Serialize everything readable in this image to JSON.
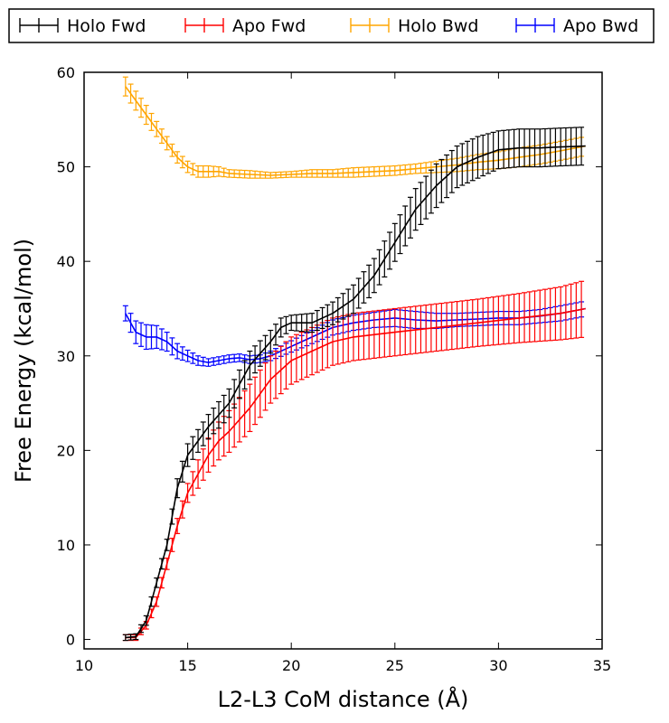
{
  "chart_data": {
    "type": "line",
    "title": "",
    "xlabel": "L2-L3 CoM distance (Å)",
    "ylabel": "Free Energy (kcal/mol)",
    "xlim": [
      10,
      35
    ],
    "ylim": [
      -1,
      60
    ],
    "xticks": [
      10,
      15,
      20,
      25,
      30,
      35
    ],
    "yticks": [
      0,
      10,
      20,
      30,
      40,
      50,
      60
    ],
    "grid": false,
    "legend_position": "top, outside plot, single row",
    "series": [
      {
        "name": "Holo Fwd",
        "color": "#000000",
        "x": [
          12.0,
          12.5,
          13.0,
          13.5,
          14.0,
          14.5,
          15.0,
          15.5,
          16.0,
          17.0,
          18.0,
          19.0,
          19.5,
          20.0,
          21.0,
          22.0,
          23.0,
          24.0,
          25.0,
          26.0,
          27.0,
          28.0,
          29.0,
          30.0,
          31.0,
          32.0,
          33.0,
          34.2
        ],
        "y": [
          0.2,
          0.3,
          2.0,
          6.0,
          10.0,
          16.0,
          19.5,
          21.0,
          22.5,
          25.0,
          29.0,
          31.5,
          33.0,
          33.5,
          33.5,
          34.5,
          36.0,
          38.5,
          42.0,
          45.5,
          48.0,
          50.0,
          51.0,
          51.8,
          52.0,
          52.0,
          52.1,
          52.2
        ],
        "err": [
          0.3,
          0.3,
          0.5,
          0.5,
          0.6,
          1.0,
          1.2,
          1.2,
          1.3,
          1.5,
          1.5,
          1.2,
          1.0,
          0.8,
          1.0,
          1.2,
          1.5,
          1.8,
          2.0,
          2.2,
          2.3,
          2.2,
          2.2,
          2.0,
          2.0,
          2.0,
          2.0,
          2.0
        ]
      },
      {
        "name": "Apo Fwd",
        "color": "#ff0000",
        "x": [
          12.0,
          12.5,
          13.0,
          13.5,
          14.0,
          14.5,
          15.0,
          15.5,
          16.0,
          16.5,
          17.0,
          18.0,
          19.0,
          20.0,
          21.0,
          22.0,
          23.0,
          25.0,
          27.0,
          29.0,
          31.0,
          33.0,
          34.2
        ],
        "y": [
          0.2,
          0.2,
          1.5,
          4.0,
          8.0,
          12.0,
          15.5,
          17.5,
          19.5,
          21.0,
          22.0,
          24.5,
          27.5,
          29.5,
          30.5,
          31.5,
          32.0,
          32.5,
          33.0,
          33.5,
          34.0,
          34.5,
          35.0
        ],
        "err": [
          0.3,
          0.3,
          0.4,
          0.5,
          0.6,
          0.8,
          1.0,
          1.5,
          1.8,
          2.0,
          2.2,
          2.5,
          2.5,
          2.5,
          2.5,
          2.5,
          2.5,
          2.5,
          2.5,
          2.5,
          2.6,
          2.8,
          3.0
        ]
      },
      {
        "name": "Holo Bwd",
        "color": "#ffa500",
        "x": [
          12.0,
          12.5,
          13.0,
          13.5,
          14.0,
          14.5,
          15.0,
          15.5,
          16.0,
          16.5,
          17.0,
          18.0,
          19.0,
          20.0,
          21.0,
          22.0,
          23.0,
          24.0,
          25.0,
          26.0,
          27.0,
          28.0,
          29.0,
          30.0,
          31.0,
          32.0,
          33.0,
          34.2
        ],
        "y": [
          58.5,
          57.0,
          55.5,
          54.0,
          52.5,
          51.0,
          50.0,
          49.5,
          49.5,
          49.5,
          49.3,
          49.2,
          49.1,
          49.2,
          49.3,
          49.3,
          49.4,
          49.5,
          49.6,
          49.8,
          50.0,
          50.2,
          50.5,
          50.7,
          51.0,
          51.3,
          51.7,
          52.2
        ],
        "err": [
          1.0,
          1.0,
          1.0,
          0.8,
          0.7,
          0.6,
          0.6,
          0.6,
          0.6,
          0.5,
          0.4,
          0.4,
          0.3,
          0.3,
          0.4,
          0.4,
          0.5,
          0.5,
          0.5,
          0.5,
          0.6,
          0.7,
          0.8,
          0.9,
          1.0,
          1.0,
          1.0,
          1.0
        ]
      },
      {
        "name": "Apo Bwd",
        "color": "#0000ff",
        "x": [
          12.0,
          12.5,
          13.0,
          13.5,
          14.0,
          14.5,
          15.0,
          15.5,
          16.0,
          16.5,
          17.0,
          17.5,
          18.0,
          18.5,
          19.0,
          20.0,
          21.0,
          22.0,
          23.0,
          24.0,
          25.0,
          26.0,
          27.0,
          28.0,
          29.0,
          30.0,
          31.0,
          32.0,
          33.0,
          34.2
        ],
        "y": [
          34.5,
          32.5,
          32.0,
          32.0,
          31.5,
          30.5,
          30.0,
          29.5,
          29.3,
          29.5,
          29.7,
          29.8,
          29.6,
          29.7,
          30.0,
          31.0,
          32.0,
          33.0,
          33.5,
          33.8,
          34.0,
          33.8,
          33.7,
          33.8,
          33.9,
          34.0,
          34.0,
          34.2,
          34.5,
          35.0
        ],
        "err": [
          0.8,
          1.2,
          1.3,
          1.2,
          1.0,
          0.8,
          0.6,
          0.5,
          0.4,
          0.4,
          0.4,
          0.4,
          0.4,
          0.4,
          0.5,
          0.6,
          0.7,
          0.8,
          0.8,
          0.8,
          0.9,
          0.9,
          0.8,
          0.7,
          0.7,
          0.7,
          0.7,
          0.7,
          0.8,
          0.8
        ]
      }
    ]
  }
}
